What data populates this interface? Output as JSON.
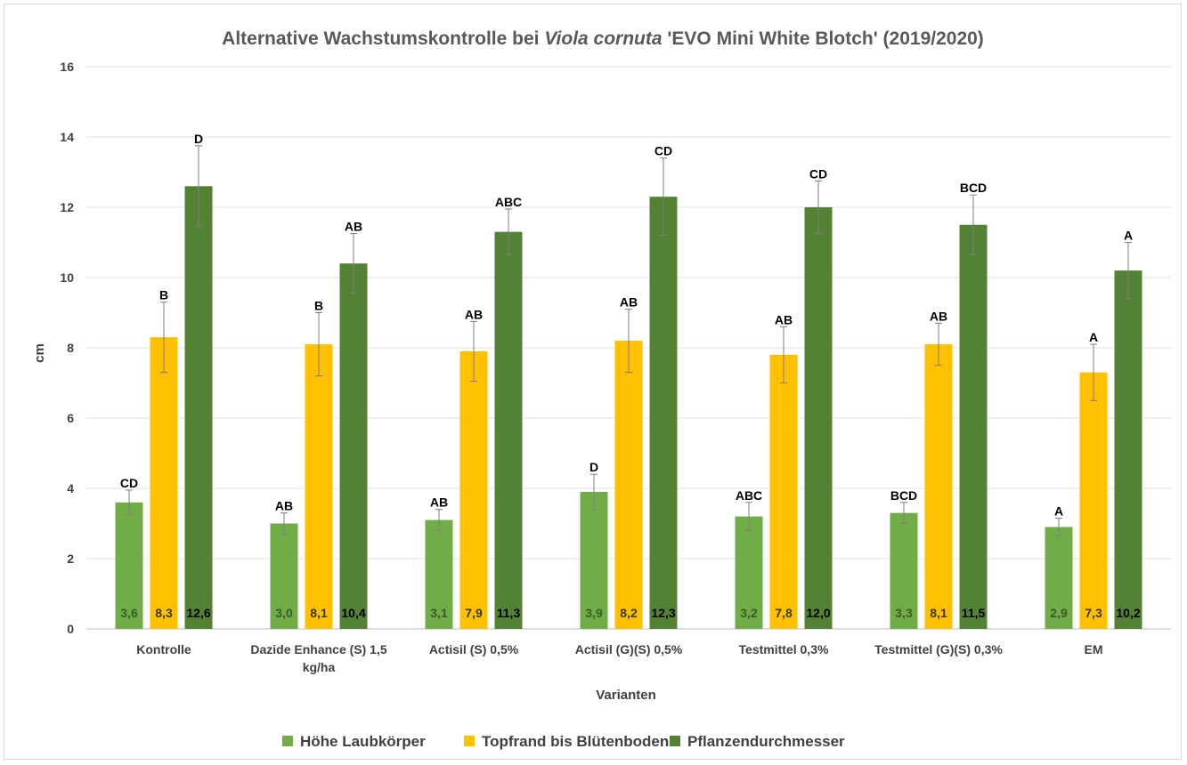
{
  "chart_data": {
    "type": "bar",
    "title_main": "Alternative Wachstumskontrolle bei ",
    "title_italic": "Viola cornuta",
    "title_rest": " 'EVO Mini White Blotch' (2019/2020)",
    "xlabel": "Varianten",
    "ylabel": "cm",
    "ylim": [
      0,
      16
    ],
    "yticks": [
      "0",
      "2",
      "4",
      "6",
      "8",
      "10",
      "12",
      "14",
      "16"
    ],
    "grid": true,
    "legend_position": "bottom",
    "categories": [
      [
        "Kontrolle"
      ],
      [
        "Dazide Enhance (S) 1,5",
        "kg/ha"
      ],
      [
        "Actisil (S) 0,5%"
      ],
      [
        "Actisil (G)(S) 0,5%"
      ],
      [
        "Testmittel 0,3%"
      ],
      [
        "Testmittel (G)(S) 0,3%"
      ],
      [
        "EM"
      ]
    ],
    "series": [
      {
        "name": "Höhe Laubkörper",
        "color": "#70ad47",
        "label_color": "#3a5a28",
        "values": [
          3.6,
          3.0,
          3.1,
          3.9,
          3.2,
          3.3,
          2.9
        ],
        "labels": [
          "3,6",
          "3,0",
          "3,1",
          "3,9",
          "3,2",
          "3,3",
          "2,9"
        ],
        "errors": [
          0.35,
          0.3,
          0.3,
          0.5,
          0.4,
          0.3,
          0.25
        ],
        "letters": [
          "CD",
          "AB",
          "AB",
          "D",
          "ABC",
          "BCD",
          "A"
        ]
      },
      {
        "name": "Topfrand bis Blütenboden",
        "color": "#ffc000",
        "label_color": "#3a3a00",
        "values": [
          8.3,
          8.1,
          7.9,
          8.2,
          7.8,
          8.1,
          7.3
        ],
        "labels": [
          "8,3",
          "8,1",
          "7,9",
          "8,2",
          "7,8",
          "8,1",
          "7,3"
        ],
        "errors": [
          1.0,
          0.9,
          0.85,
          0.9,
          0.8,
          0.6,
          0.8
        ],
        "letters": [
          "B",
          "B",
          "AB",
          "AB",
          "AB",
          "AB",
          "A"
        ]
      },
      {
        "name": "Pflanzendurchmesser",
        "color": "#548235",
        "label_color": "#000000",
        "values": [
          12.6,
          10.4,
          11.3,
          12.3,
          12.0,
          11.5,
          10.2
        ],
        "labels": [
          "12,6",
          "10,4",
          "11,3",
          "12,3",
          "12,0",
          "11,5",
          "10,2"
        ],
        "errors": [
          1.15,
          0.85,
          0.65,
          1.1,
          0.75,
          0.85,
          0.8
        ],
        "letters": [
          "D",
          "AB",
          "ABC",
          "CD",
          "CD",
          "BCD",
          "A"
        ]
      }
    ]
  }
}
